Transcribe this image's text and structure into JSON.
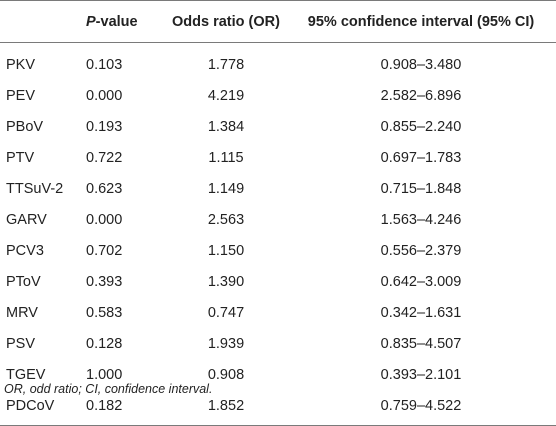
{
  "table": {
    "headers": {
      "name": "",
      "p_italic": "P",
      "p_rest": "-value",
      "or": "Odds ratio (OR)",
      "ci": "95% confidence interval (95% CI)"
    },
    "rows": [
      {
        "name": "PKV",
        "p": "0.103",
        "or": "1.778",
        "ci": "0.908–3.480"
      },
      {
        "name": "PEV",
        "p": "0.000",
        "or": "4.219",
        "ci": "2.582–6.896"
      },
      {
        "name": "PBoV",
        "p": "0.193",
        "or": "1.384",
        "ci": "0.855–2.240"
      },
      {
        "name": "PTV",
        "p": "0.722",
        "or": "1.115",
        "ci": "0.697–1.783"
      },
      {
        "name": "TTSuV-2",
        "p": "0.623",
        "or": "1.149",
        "ci": "0.715–1.848"
      },
      {
        "name": "GARV",
        "p": "0.000",
        "or": "2.563",
        "ci": "1.563–4.246"
      },
      {
        "name": "PCV3",
        "p": "0.702",
        "or": "1.150",
        "ci": "0.556–2.379"
      },
      {
        "name": "PToV",
        "p": "0.393",
        "or": "1.390",
        "ci": "0.642–3.009"
      },
      {
        "name": "MRV",
        "p": "0.583",
        "or": "0.747",
        "ci": "0.342–1.631"
      },
      {
        "name": "PSV",
        "p": "0.128",
        "or": "1.939",
        "ci": "0.835–4.507"
      },
      {
        "name": "TGEV",
        "p": "1.000",
        "or": "0.908",
        "ci": "0.393–2.101"
      },
      {
        "name": "PDCoV",
        "p": "0.182",
        "or": "1.852",
        "ci": "0.759–4.522"
      }
    ]
  },
  "footnote": "OR, odd ratio; CI, confidence interval."
}
